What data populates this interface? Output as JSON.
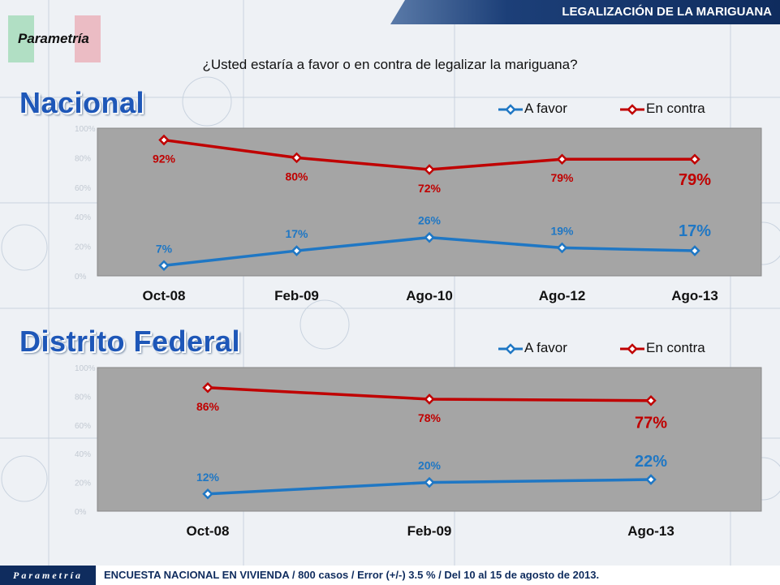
{
  "header": {
    "title": "LEGALIZACIÓN DE LA MARIGUANA",
    "brand": "Parametría"
  },
  "question": "¿Usted estaría a favor o en contra de legalizar la mariguana?",
  "colors": {
    "favor": "#1f77c4",
    "contra": "#c00000",
    "title": "#1e57b8",
    "plot_bg": "#a5a5a5"
  },
  "legend": {
    "favor": "A favor",
    "contra": "En contra"
  },
  "chart_data": [
    {
      "type": "line",
      "title": "Nacional",
      "categories": [
        "Oct-08",
        "Feb-09",
        "Ago-10",
        "Ago-12",
        "Ago-13"
      ],
      "ylim": [
        0,
        100
      ],
      "yticks": [
        "0%",
        "20%",
        "40%",
        "60%",
        "80%",
        "100%"
      ],
      "grid": false,
      "legend_position": "top-right",
      "series": [
        {
          "name": "A favor",
          "values": [
            7,
            17,
            26,
            19,
            17
          ],
          "labels": [
            "7%",
            "17%",
            "26%",
            "19%",
            "17%"
          ]
        },
        {
          "name": "En contra",
          "values": [
            92,
            80,
            72,
            79,
            79
          ],
          "labels": [
            "92%",
            "80%",
            "72%",
            "79%",
            "79%"
          ]
        }
      ]
    },
    {
      "type": "line",
      "title": "Distrito Federal",
      "categories": [
        "Oct-08",
        "Feb-09",
        "Ago-13"
      ],
      "ylim": [
        0,
        100
      ],
      "yticks": [
        "0%",
        "20%",
        "40%",
        "60%",
        "80%",
        "100%"
      ],
      "grid": false,
      "legend_position": "top-right",
      "series": [
        {
          "name": "A favor",
          "values": [
            12,
            20,
            22
          ],
          "labels": [
            "12%",
            "20%",
            "22%"
          ]
        },
        {
          "name": "En contra",
          "values": [
            86,
            78,
            77
          ],
          "labels": [
            "86%",
            "78%",
            "77%"
          ]
        }
      ]
    }
  ],
  "footer": {
    "brand": "Parametría",
    "note": "ENCUESTA NACIONAL EN VIVIENDA / 800 casos / Error (+/-) 3.5 % / Del 10 al 15 de agosto de 2013."
  }
}
